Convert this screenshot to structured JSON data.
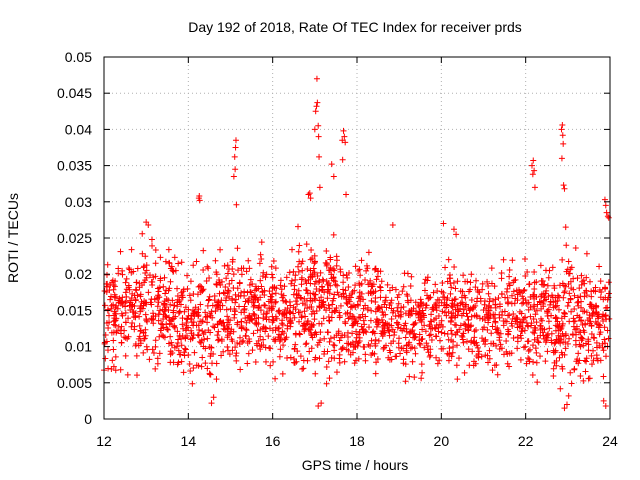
{
  "chart_data": {
    "type": "scatter",
    "title": "Day 192 of 2018, Rate Of TEC Index for receiver prds",
    "xlabel": "GPS time / hours",
    "ylabel": "ROTI / TECUs",
    "xlim": [
      12,
      24
    ],
    "ylim": [
      0,
      0.05
    ],
    "grid": true,
    "marker": "+",
    "series_color": "#ff0000",
    "xticks": [
      {
        "value": 12,
        "label": "12"
      },
      {
        "value": 14,
        "label": "14"
      },
      {
        "value": 16,
        "label": "16"
      },
      {
        "value": 18,
        "label": "18"
      },
      {
        "value": 20,
        "label": "20"
      },
      {
        "value": 22,
        "label": "22"
      },
      {
        "value": 24,
        "label": "24"
      }
    ],
    "yticks": [
      {
        "value": 0,
        "label": "0"
      },
      {
        "value": 0.005,
        "label": "0.005"
      },
      {
        "value": 0.01,
        "label": "0.01"
      },
      {
        "value": 0.015,
        "label": "0.015"
      },
      {
        "value": 0.02,
        "label": "0.02"
      },
      {
        "value": 0.025,
        "label": "0.025"
      },
      {
        "value": 0.03,
        "label": "0.03"
      },
      {
        "value": 0.035,
        "label": "0.035"
      },
      {
        "value": 0.04,
        "label": "0.04"
      },
      {
        "value": 0.045,
        "label": "0.045"
      },
      {
        "value": 0.05,
        "label": "0.05"
      }
    ],
    "density_profile": [
      {
        "x_start": 12.0,
        "x_end": 12.6,
        "y_min": 0.004,
        "y_max": 0.024,
        "count": 110
      },
      {
        "x_start": 12.6,
        "x_end": 13.6,
        "y_min": 0.004,
        "y_max": 0.026,
        "count": 190
      },
      {
        "x_start": 13.6,
        "x_end": 14.6,
        "y_min": 0.003,
        "y_max": 0.024,
        "count": 180
      },
      {
        "x_start": 14.6,
        "x_end": 15.6,
        "y_min": 0.004,
        "y_max": 0.025,
        "count": 190
      },
      {
        "x_start": 15.6,
        "x_end": 16.6,
        "y_min": 0.004,
        "y_max": 0.025,
        "count": 190
      },
      {
        "x_start": 16.6,
        "x_end": 17.6,
        "y_min": 0.003,
        "y_max": 0.027,
        "count": 220
      },
      {
        "x_start": 17.6,
        "x_end": 18.6,
        "y_min": 0.004,
        "y_max": 0.024,
        "count": 190
      },
      {
        "x_start": 18.6,
        "x_end": 19.6,
        "y_min": 0.004,
        "y_max": 0.021,
        "count": 170
      },
      {
        "x_start": 19.6,
        "x_end": 20.6,
        "y_min": 0.004,
        "y_max": 0.024,
        "count": 170
      },
      {
        "x_start": 20.6,
        "x_end": 21.6,
        "y_min": 0.004,
        "y_max": 0.022,
        "count": 170
      },
      {
        "x_start": 21.6,
        "x_end": 22.6,
        "y_min": 0.004,
        "y_max": 0.024,
        "count": 180
      },
      {
        "x_start": 22.6,
        "x_end": 23.3,
        "y_min": 0.002,
        "y_max": 0.024,
        "count": 140
      },
      {
        "x_start": 23.3,
        "x_end": 24.0,
        "y_min": 0.003,
        "y_max": 0.023,
        "count": 130
      }
    ],
    "spike_points": [
      {
        "x": 14.25,
        "y": 0.0305
      },
      {
        "x": 14.26,
        "y": 0.0308
      },
      {
        "x": 14.27,
        "y": 0.0302
      },
      {
        "x": 15.08,
        "y": 0.0335
      },
      {
        "x": 15.1,
        "y": 0.0362
      },
      {
        "x": 15.12,
        "y": 0.0375
      },
      {
        "x": 15.13,
        "y": 0.0385
      },
      {
        "x": 15.11,
        "y": 0.0345
      },
      {
        "x": 15.14,
        "y": 0.0296
      },
      {
        "x": 16.85,
        "y": 0.031
      },
      {
        "x": 16.88,
        "y": 0.0312
      },
      {
        "x": 16.9,
        "y": 0.0305
      },
      {
        "x": 17.0,
        "y": 0.04
      },
      {
        "x": 17.02,
        "y": 0.0425
      },
      {
        "x": 17.04,
        "y": 0.0432
      },
      {
        "x": 17.06,
        "y": 0.0437
      },
      {
        "x": 17.08,
        "y": 0.0405
      },
      {
        "x": 17.09,
        "y": 0.039
      },
      {
        "x": 17.05,
        "y": 0.047
      },
      {
        "x": 17.1,
        "y": 0.0362
      },
      {
        "x": 17.12,
        "y": 0.032
      },
      {
        "x": 17.4,
        "y": 0.0352
      },
      {
        "x": 17.45,
        "y": 0.0335
      },
      {
        "x": 17.65,
        "y": 0.0385
      },
      {
        "x": 17.68,
        "y": 0.0398
      },
      {
        "x": 17.7,
        "y": 0.039
      },
      {
        "x": 17.72,
        "y": 0.0382
      },
      {
        "x": 17.66,
        "y": 0.0358
      },
      {
        "x": 17.74,
        "y": 0.031
      },
      {
        "x": 22.15,
        "y": 0.035
      },
      {
        "x": 22.18,
        "y": 0.0357
      },
      {
        "x": 22.2,
        "y": 0.0343
      },
      {
        "x": 22.22,
        "y": 0.032
      },
      {
        "x": 22.17,
        "y": 0.0338
      },
      {
        "x": 22.85,
        "y": 0.04
      },
      {
        "x": 22.87,
        "y": 0.0406
      },
      {
        "x": 22.88,
        "y": 0.0392
      },
      {
        "x": 22.89,
        "y": 0.038
      },
      {
        "x": 22.86,
        "y": 0.036
      },
      {
        "x": 22.9,
        "y": 0.0323
      },
      {
        "x": 22.92,
        "y": 0.0318
      },
      {
        "x": 22.95,
        "y": 0.0265
      },
      {
        "x": 23.88,
        "y": 0.0303
      },
      {
        "x": 23.9,
        "y": 0.0295
      },
      {
        "x": 23.92,
        "y": 0.0285
      },
      {
        "x": 23.95,
        "y": 0.028
      },
      {
        "x": 23.97,
        "y": 0.0278
      },
      {
        "x": 13.0,
        "y": 0.0272
      },
      {
        "x": 13.05,
        "y": 0.0268
      },
      {
        "x": 18.85,
        "y": 0.0268
      },
      {
        "x": 20.05,
        "y": 0.027
      },
      {
        "x": 20.3,
        "y": 0.0262
      },
      {
        "x": 20.35,
        "y": 0.0255
      }
    ],
    "low_points": [
      {
        "x": 14.55,
        "y": 0.0022
      },
      {
        "x": 14.6,
        "y": 0.003
      },
      {
        "x": 17.08,
        "y": 0.0018
      },
      {
        "x": 17.15,
        "y": 0.0022
      },
      {
        "x": 22.92,
        "y": 0.0015
      },
      {
        "x": 22.98,
        "y": 0.002
      },
      {
        "x": 23.02,
        "y": 0.0032
      },
      {
        "x": 23.9,
        "y": 0.0018
      },
      {
        "x": 23.85,
        "y": 0.0025
      }
    ]
  }
}
